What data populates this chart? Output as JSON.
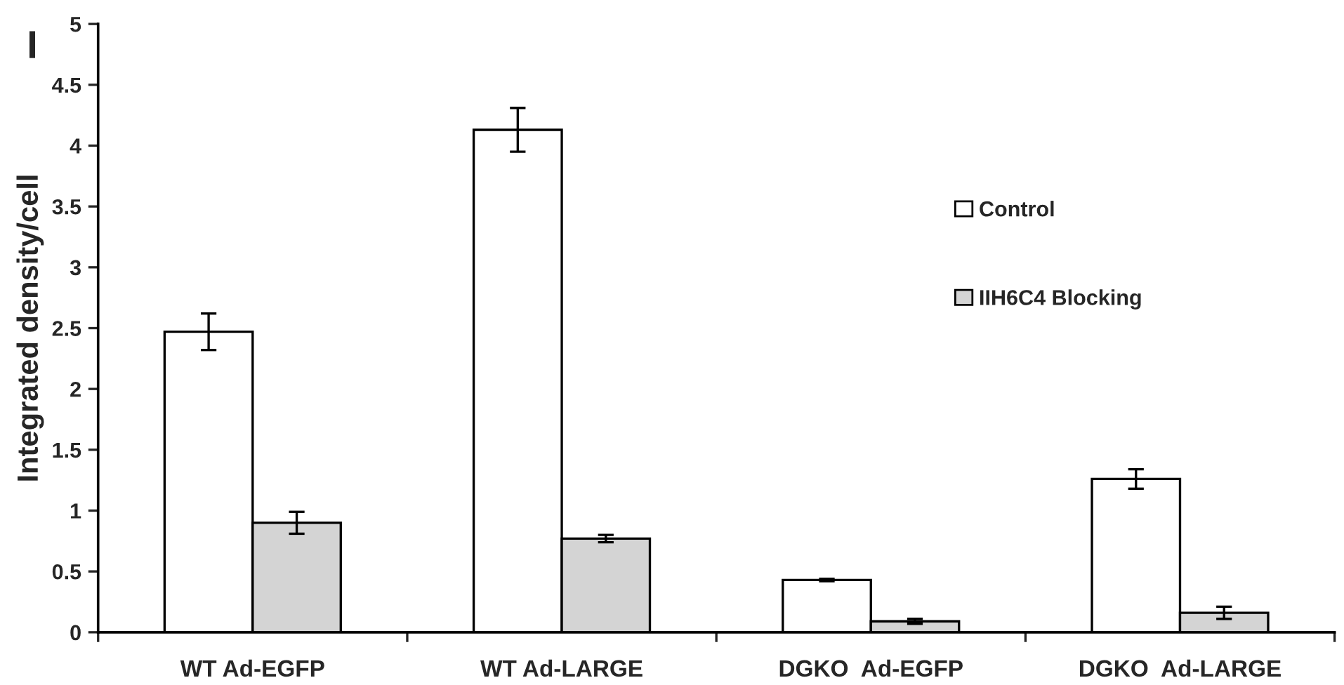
{
  "chart_data": {
    "type": "bar",
    "ylabel": "Integrated density/cell",
    "annotations": [
      "I"
    ],
    "categories": [
      "WT Ad-EGFP",
      "WT Ad-LARGE",
      "DGKO  Ad-EGFP",
      "DGKO  Ad-LARGE"
    ],
    "series": [
      {
        "name": "Control",
        "color": "#ffffff",
        "values": [
          2.47,
          4.13,
          0.43,
          1.26
        ],
        "errors": [
          0.15,
          0.18,
          0.01,
          0.08
        ]
      },
      {
        "name": "IIH6C4 Blocking",
        "color": "#d4d4d4",
        "values": [
          0.9,
          0.77,
          0.09,
          0.16
        ],
        "errors": [
          0.09,
          0.03,
          0.02,
          0.05
        ]
      }
    ],
    "ylim": [
      0,
      5
    ],
    "yticks": [
      0,
      0.5,
      1,
      1.5,
      2,
      2.5,
      3,
      3.5,
      4,
      4.5,
      5
    ],
    "legend": "right",
    "grid": false
  }
}
